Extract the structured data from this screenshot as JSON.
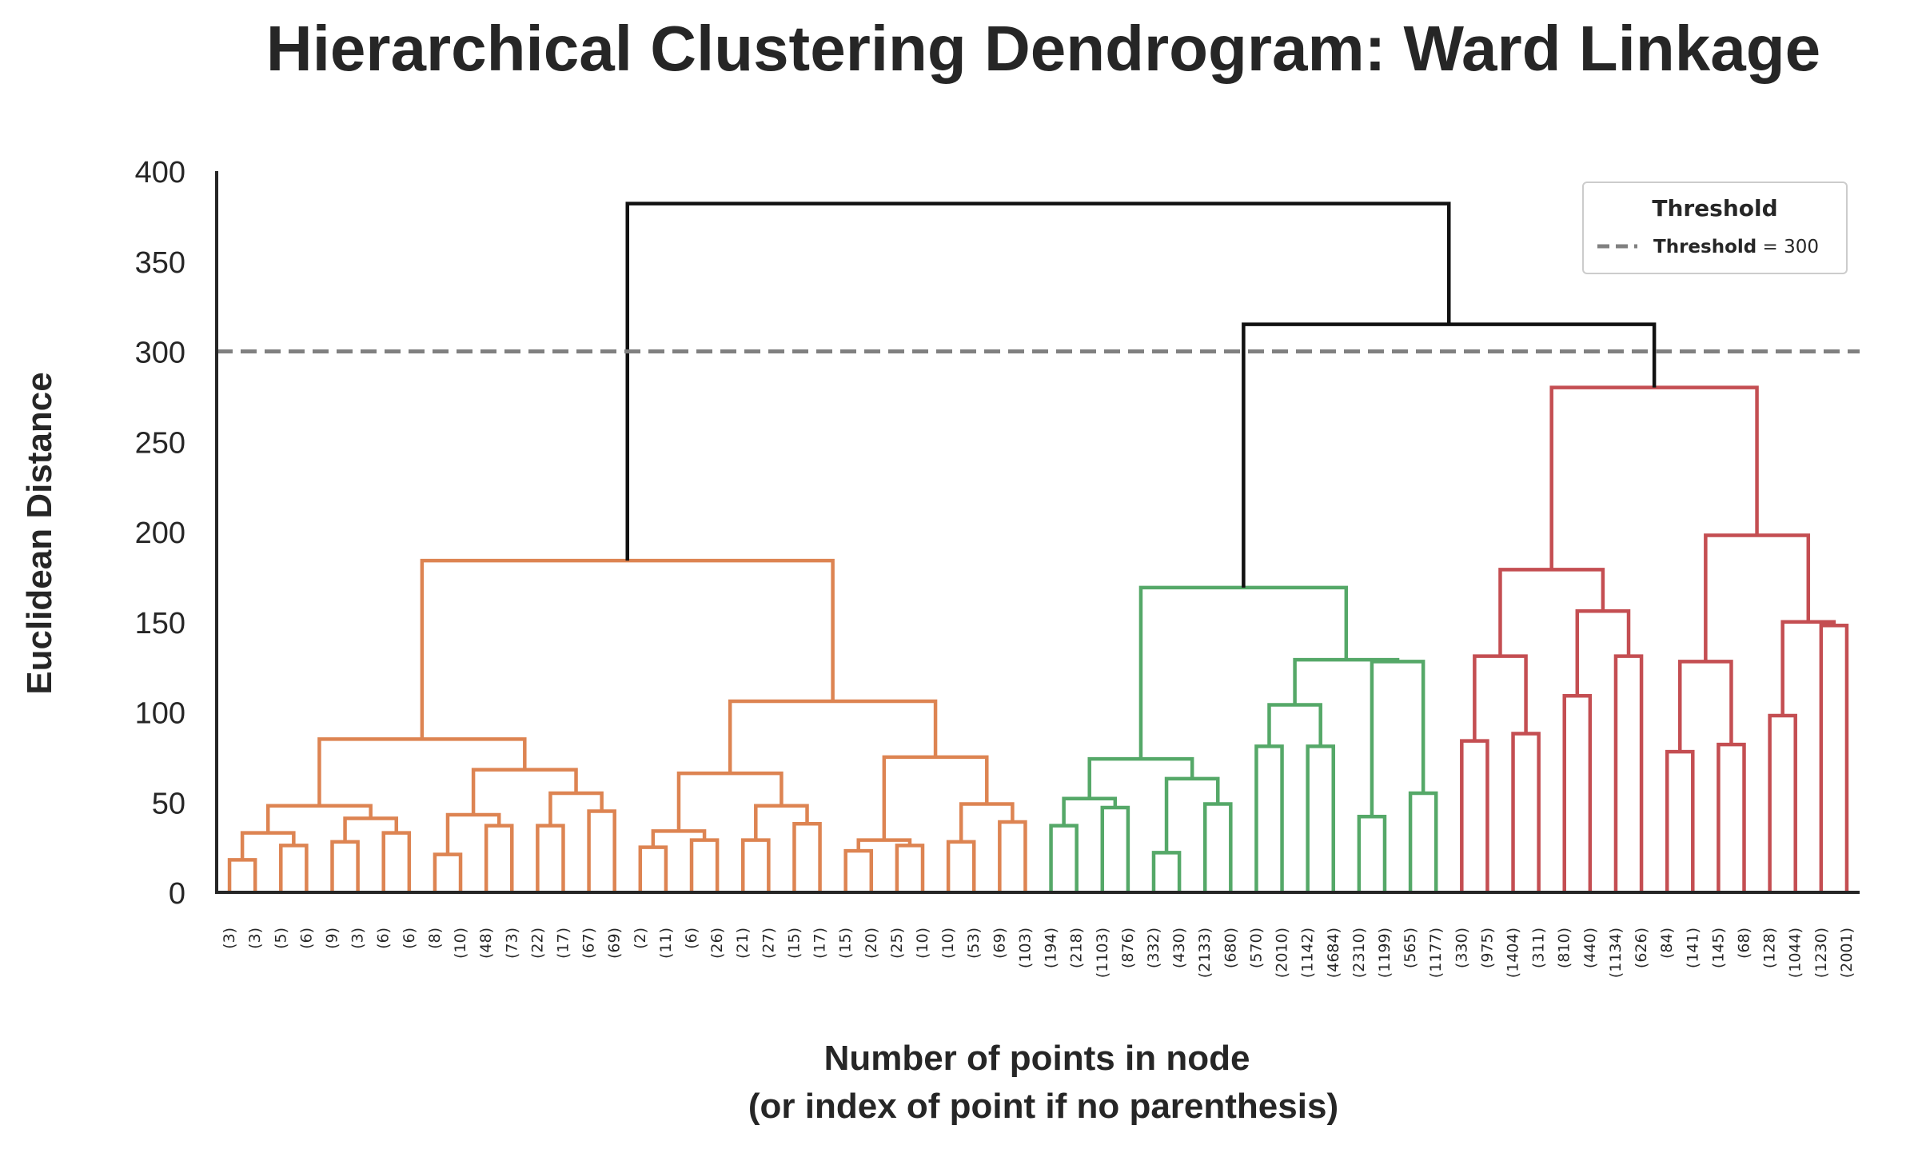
{
  "chart_data": {
    "type": "dendrogram",
    "title": "Hierarchical Clustering Dendrogram: Ward Linkage",
    "ylabel": "Euclidean Distance",
    "xlabel_line1": "Number of points in node",
    "xlabel_line2": "(or index of point if no parenthesis)",
    "ylim": [
      0,
      400
    ],
    "yticks": [
      0,
      50,
      100,
      150,
      200,
      250,
      300,
      350,
      400
    ],
    "threshold": {
      "value": 300,
      "legend_title": "Threshold",
      "legend_label_bold": "Threshold",
      "legend_label_rest": " = 300",
      "color": "#808080"
    },
    "colors": {
      "orange": "#dd8452",
      "green": "#55a868",
      "red": "#c44e52",
      "above": "#111111"
    },
    "leaves": [
      "(3)",
      "(3)",
      "(5)",
      "(6)",
      "(9)",
      "(3)",
      "(6)",
      "(6)",
      "(8)",
      "(10)",
      "(48)",
      "(73)",
      "(22)",
      "(17)",
      "(67)",
      "(69)",
      "(2)",
      "(11)",
      "(6)",
      "(26)",
      "(21)",
      "(27)",
      "(15)",
      "(17)",
      "(15)",
      "(20)",
      "(25)",
      "(10)",
      "(10)",
      "(53)",
      "(69)",
      "(103)",
      "(194)",
      "(218)",
      "(1103)",
      "(876)",
      "(332)",
      "(430)",
      "(2133)",
      "(680)",
      "(570)",
      "(2010)",
      "(1142)",
      "(4684)",
      "(2310)",
      "(1199)",
      "(565)",
      "(1177)",
      "(330)",
      "(975)",
      "(1404)",
      "(311)",
      "(810)",
      "(440)",
      "(1134)",
      "(626)",
      "(84)",
      "(141)",
      "(145)",
      "(68)",
      "(128)",
      "(1044)",
      "(1230)",
      "(2001)"
    ],
    "merges": [
      {
        "x1": 0.5,
        "x2": 1.5,
        "h1": 0,
        "h2": 0,
        "h": 18,
        "c": "orange"
      },
      {
        "x1": 2.5,
        "x2": 3.5,
        "h1": 0,
        "h2": 0,
        "h": 26,
        "c": "orange"
      },
      {
        "x1": 1,
        "x2": 3,
        "h1": 18,
        "h2": 26,
        "h": 33,
        "c": "orange"
      },
      {
        "x1": 4.5,
        "x2": 5.5,
        "h1": 0,
        "h2": 0,
        "h": 28,
        "c": "orange"
      },
      {
        "x1": 6.5,
        "x2": 7.5,
        "h1": 0,
        "h2": 0,
        "h": 33,
        "c": "orange"
      },
      {
        "x1": 5,
        "x2": 7,
        "h1": 28,
        "h2": 33,
        "h": 41,
        "c": "orange"
      },
      {
        "x1": 2,
        "x2": 6,
        "h1": 33,
        "h2": 41,
        "h": 48,
        "c": "orange"
      },
      {
        "x1": 8.5,
        "x2": 9.5,
        "h1": 0,
        "h2": 0,
        "h": 21,
        "c": "orange"
      },
      {
        "x1": 10.5,
        "x2": 11.5,
        "h1": 0,
        "h2": 0,
        "h": 37,
        "c": "orange"
      },
      {
        "x1": 9,
        "x2": 11,
        "h1": 21,
        "h2": 37,
        "h": 43,
        "c": "orange"
      },
      {
        "x1": 12.5,
        "x2": 13.5,
        "h1": 0,
        "h2": 0,
        "h": 37,
        "c": "orange"
      },
      {
        "x1": 14.5,
        "x2": 15.5,
        "h1": 0,
        "h2": 0,
        "h": 45,
        "c": "orange"
      },
      {
        "x1": 13,
        "x2": 15,
        "h1": 37,
        "h2": 45,
        "h": 55,
        "c": "orange"
      },
      {
        "x1": 10,
        "x2": 14,
        "h1": 43,
        "h2": 55,
        "h": 68,
        "c": "orange"
      },
      {
        "x1": 4,
        "x2": 12,
        "h1": 48,
        "h2": 68,
        "h": 85,
        "c": "orange"
      },
      {
        "x1": 16.5,
        "x2": 17.5,
        "h1": 0,
        "h2": 0,
        "h": 25,
        "c": "orange"
      },
      {
        "x1": 18.5,
        "x2": 19.5,
        "h1": 0,
        "h2": 0,
        "h": 29,
        "c": "orange"
      },
      {
        "x1": 17,
        "x2": 19,
        "h1": 25,
        "h2": 29,
        "h": 34,
        "c": "orange"
      },
      {
        "x1": 20.5,
        "x2": 21.5,
        "h1": 0,
        "h2": 0,
        "h": 29,
        "c": "orange"
      },
      {
        "x1": 22.5,
        "x2": 23.5,
        "h1": 0,
        "h2": 0,
        "h": 38,
        "c": "orange"
      },
      {
        "x1": 21,
        "x2": 23,
        "h1": 29,
        "h2": 38,
        "h": 48,
        "c": "orange"
      },
      {
        "x1": 18,
        "x2": 22,
        "h1": 34,
        "h2": 48,
        "h": 66,
        "c": "orange"
      },
      {
        "x1": 24.5,
        "x2": 25.5,
        "h1": 0,
        "h2": 0,
        "h": 23,
        "c": "orange"
      },
      {
        "x1": 26.5,
        "x2": 27.5,
        "h1": 0,
        "h2": 0,
        "h": 26,
        "c": "orange"
      },
      {
        "x1": 25,
        "x2": 27,
        "h1": 23,
        "h2": 26,
        "h": 29,
        "c": "orange"
      },
      {
        "x1": 28.5,
        "x2": 29.5,
        "h1": 0,
        "h2": 0,
        "h": 28,
        "c": "orange"
      },
      {
        "x1": 30.5,
        "x2": 31.5,
        "h1": 0,
        "h2": 0,
        "h": 39,
        "c": "orange"
      },
      {
        "x1": 29,
        "x2": 31,
        "h1": 28,
        "h2": 39,
        "h": 49,
        "c": "orange"
      },
      {
        "x1": 26,
        "x2": 30,
        "h1": 29,
        "h2": 49,
        "h": 75,
        "c": "orange"
      },
      {
        "x1": 20,
        "x2": 28,
        "h1": 66,
        "h2": 75,
        "h": 106,
        "c": "orange"
      },
      {
        "x1": 8,
        "x2": 24,
        "h1": 85,
        "h2": 106,
        "h": 184,
        "c": "orange"
      },
      {
        "x1": 32.5,
        "x2": 33.5,
        "h1": 0,
        "h2": 0,
        "h": 37,
        "c": "green"
      },
      {
        "x1": 34.5,
        "x2": 35.5,
        "h1": 0,
        "h2": 0,
        "h": 47,
        "c": "green"
      },
      {
        "x1": 33,
        "x2": 35,
        "h1": 37,
        "h2": 47,
        "h": 52,
        "c": "green"
      },
      {
        "x1": 36.5,
        "x2": 37.5,
        "h1": 0,
        "h2": 0,
        "h": 22,
        "c": "green"
      },
      {
        "x1": 38.5,
        "x2": 39.5,
        "h1": 0,
        "h2": 0,
        "h": 49,
        "c": "green"
      },
      {
        "x1": 37,
        "x2": 39,
        "h1": 22,
        "h2": 49,
        "h": 63,
        "c": "green"
      },
      {
        "x1": 34,
        "x2": 38,
        "h1": 52,
        "h2": 63,
        "h": 74,
        "c": "green"
      },
      {
        "x1": 40.5,
        "x2": 41.5,
        "h1": 0,
        "h2": 0,
        "h": 81,
        "c": "green"
      },
      {
        "x1": 42.5,
        "x2": 43.5,
        "h1": 0,
        "h2": 0,
        "h": 81,
        "c": "green"
      },
      {
        "x1": 41,
        "x2": 43,
        "h1": 81,
        "h2": 81,
        "h": 104,
        "c": "green"
      },
      {
        "x1": 44.5,
        "x2": 45.5,
        "h1": 0,
        "h2": 0,
        "h": 42,
        "c": "green"
      },
      {
        "x1": 46.5,
        "x2": 47.5,
        "h1": 0,
        "h2": 0,
        "h": 55,
        "c": "green"
      },
      {
        "x1": 45,
        "x2": 47,
        "h1": 42,
        "h2": 55,
        "h": 128,
        "c": "green"
      },
      {
        "x1": 42,
        "x2": 46,
        "h1": 104,
        "h2": 128,
        "h": 129,
        "c": "green"
      },
      {
        "x1": 36,
        "x2": 44,
        "h1": 74,
        "h2": 129,
        "h": 169,
        "c": "green"
      },
      {
        "x1": 48.5,
        "x2": 49.5,
        "h1": 0,
        "h2": 0,
        "h": 84,
        "c": "red"
      },
      {
        "x1": 50.5,
        "x2": 51.5,
        "h1": 0,
        "h2": 0,
        "h": 88,
        "c": "red"
      },
      {
        "x1": 49,
        "x2": 51,
        "h1": 84,
        "h2": 88,
        "h": 131,
        "c": "red"
      },
      {
        "x1": 52.5,
        "x2": 53.5,
        "h1": 0,
        "h2": 0,
        "h": 109,
        "c": "red"
      },
      {
        "x1": 54.5,
        "x2": 55.5,
        "h1": 0,
        "h2": 0,
        "h": 131,
        "c": "red"
      },
      {
        "x1": 53,
        "x2": 55,
        "h1": 109,
        "h2": 131,
        "h": 156,
        "c": "red"
      },
      {
        "x1": 50,
        "x2": 54,
        "h1": 131,
        "h2": 156,
        "h": 179,
        "c": "red"
      },
      {
        "x1": 56.5,
        "x2": 57.5,
        "h1": 0,
        "h2": 0,
        "h": 78,
        "c": "red"
      },
      {
        "x1": 58.5,
        "x2": 59.5,
        "h1": 0,
        "h2": 0,
        "h": 82,
        "c": "red"
      },
      {
        "x1": 57,
        "x2": 59,
        "h1": 78,
        "h2": 82,
        "h": 128,
        "c": "red"
      },
      {
        "x1": 60.5,
        "x2": 61.5,
        "h1": 0,
        "h2": 0,
        "h": 98,
        "c": "red"
      },
      {
        "x1": 62.5,
        "x2": 63.5,
        "h1": 0,
        "h2": 0,
        "h": 148,
        "c": "red"
      },
      {
        "x1": 61,
        "x2": 63,
        "h1": 98,
        "h2": 148,
        "h": 150,
        "c": "red"
      },
      {
        "x1": 58,
        "x2": 62,
        "h1": 128,
        "h2": 150,
        "h": 198,
        "c": "red"
      },
      {
        "x1": 52,
        "x2": 60,
        "h1": 179,
        "h2": 198,
        "h": 280,
        "c": "red"
      },
      {
        "x1": 40,
        "x2": 56,
        "h1": 169,
        "h2": 280,
        "h": 315,
        "c": "above"
      },
      {
        "x1": 16,
        "x2": 48,
        "h1": 184,
        "h2": 315,
        "h": 382,
        "c": "above"
      }
    ]
  }
}
